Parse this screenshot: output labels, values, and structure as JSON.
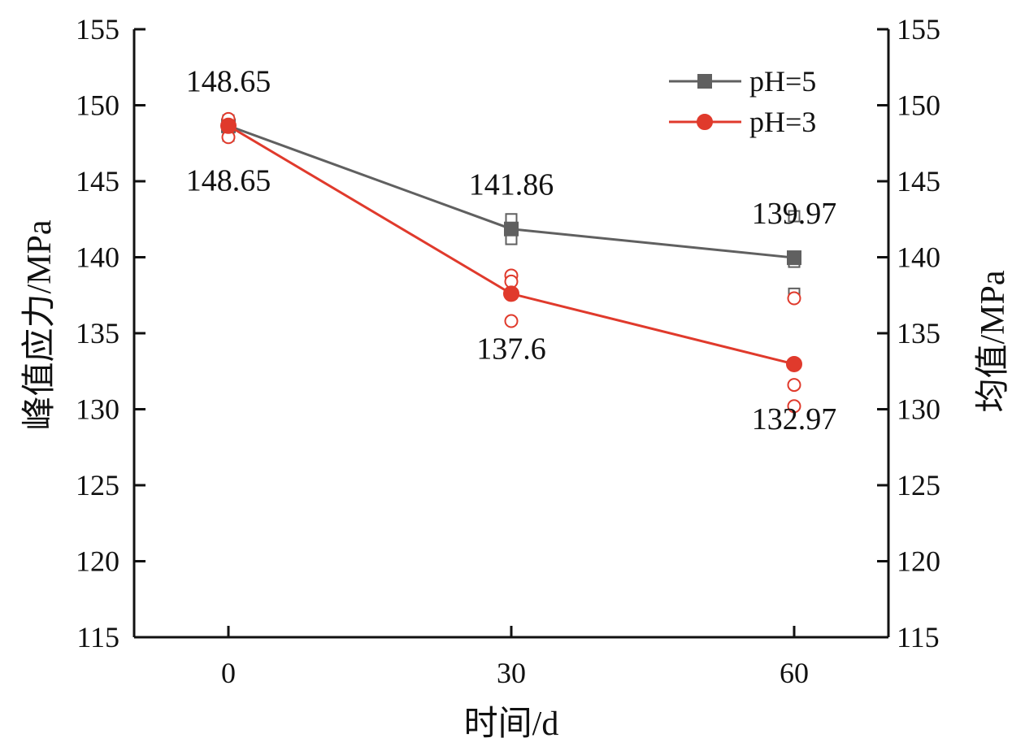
{
  "chart_data": {
    "type": "line",
    "title": "",
    "xlabel": "时间/d",
    "ylabel": "峰值应力/MPa",
    "ylabel_right": "均值/MPa",
    "categories": [
      0,
      30,
      60
    ],
    "x_tick_labels": [
      "0",
      "30",
      "60"
    ],
    "x_range": [
      -10,
      70
    ],
    "ylim": [
      115,
      155
    ],
    "y_ticks": [
      115,
      120,
      125,
      130,
      135,
      140,
      145,
      150,
      155
    ],
    "y_tick_labels": [
      "115",
      "120",
      "125",
      "130",
      "135",
      "140",
      "145",
      "150",
      "155"
    ],
    "grid": false,
    "legend_position": "top-right",
    "series": [
      {
        "name": "pH=5",
        "color": "#606060",
        "marker": "square",
        "values": [
          148.65,
          141.86,
          139.97
        ],
        "data_labels": [
          "148.65",
          "141.86",
          "139.97"
        ],
        "label_offset": [
          [
            0,
            -1
          ],
          [
            0,
            -1
          ],
          [
            0,
            -1
          ]
        ],
        "samples": [
          {
            "x": 0,
            "y": 149.0
          },
          {
            "x": 0,
            "y": 148.3
          },
          {
            "x": 0,
            "y": 148.0
          },
          {
            "x": 30,
            "y": 142.5
          },
          {
            "x": 30,
            "y": 141.9
          },
          {
            "x": 30,
            "y": 141.2
          },
          {
            "x": 60,
            "y": 142.7
          },
          {
            "x": 60,
            "y": 139.7
          },
          {
            "x": 60,
            "y": 137.6
          }
        ]
      },
      {
        "name": "pH=3",
        "color": "#e03a2c",
        "marker": "circle",
        "values": [
          148.65,
          137.6,
          132.97
        ],
        "data_labels": [
          "148.65",
          "137.6",
          "132.97"
        ],
        "label_offset": [
          [
            0,
            1
          ],
          [
            0,
            1
          ],
          [
            0,
            1
          ]
        ],
        "samples": [
          {
            "x": 0,
            "y": 149.1
          },
          {
            "x": 0,
            "y": 148.6
          },
          {
            "x": 0,
            "y": 147.9
          },
          {
            "x": 30,
            "y": 138.8
          },
          {
            "x": 30,
            "y": 138.4
          },
          {
            "x": 30,
            "y": 135.8
          },
          {
            "x": 60,
            "y": 137.3
          },
          {
            "x": 60,
            "y": 131.6
          },
          {
            "x": 60,
            "y": 130.2
          }
        ]
      }
    ]
  }
}
